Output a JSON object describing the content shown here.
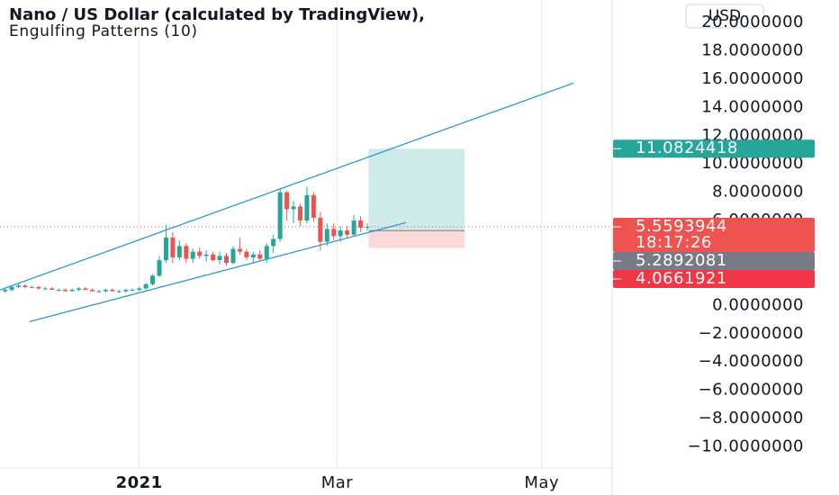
{
  "chart_data": {
    "type": "candlestick",
    "title": "Nano / US Dollar (calculated by TradingView),",
    "subtitle": "Engulfing Patterns (10)",
    "currency": "USD",
    "x": [
      -40,
      -38,
      -36,
      -34,
      -32,
      -30,
      -28,
      -26,
      -24,
      -22,
      -20,
      -18,
      -16,
      -14,
      -12,
      -10,
      -8,
      -6,
      -4,
      -2,
      0,
      2,
      4,
      6,
      8,
      10,
      12,
      14,
      16,
      18,
      20,
      22,
      24,
      26,
      28,
      30,
      32,
      34,
      36,
      38,
      40,
      42,
      44,
      46,
      48,
      50,
      52,
      54,
      56,
      58,
      60,
      62,
      64,
      66,
      68
    ],
    "open": [
      1.0,
      1.1,
      1.3,
      1.4,
      1.3,
      1.3,
      1.2,
      1.2,
      1.1,
      1.1,
      1.0,
      1.1,
      1.2,
      1.1,
      1.0,
      1.0,
      1.1,
      1.0,
      1.0,
      1.1,
      1.1,
      1.2,
      1.5,
      2.1,
      3.2,
      4.8,
      3.4,
      4.2,
      3.3,
      3.8,
      3.5,
      3.6,
      3.2,
      3.5,
      3.0,
      4.0,
      3.8,
      3.4,
      3.6,
      3.3,
      4.2,
      4.7,
      8.0,
      6.8,
      7.0,
      6.0,
      7.8,
      6.2,
      4.5,
      5.4,
      4.9,
      5.3,
      5.0,
      6.0,
      5.5
    ],
    "high": [
      1.2,
      1.4,
      1.6,
      1.5,
      1.4,
      1.4,
      1.3,
      1.3,
      1.2,
      1.2,
      1.2,
      1.3,
      1.3,
      1.2,
      1.1,
      1.2,
      1.2,
      1.1,
      1.2,
      1.2,
      1.3,
      1.6,
      2.2,
      3.5,
      5.7,
      5.2,
      4.6,
      4.4,
      4.0,
      4.1,
      3.9,
      3.8,
      3.8,
      3.7,
      4.2,
      4.8,
      4.0,
      3.8,
      3.9,
      4.4,
      5.0,
      8.3,
      8.1,
      7.4,
      7.2,
      8.4,
      8.0,
      6.6,
      5.8,
      5.8,
      5.6,
      5.6,
      6.4,
      6.3,
      5.8
    ],
    "low": [
      0.9,
      1.0,
      1.2,
      1.2,
      1.2,
      1.1,
      1.1,
      1.1,
      1.0,
      1.0,
      1.0,
      1.0,
      1.1,
      1.0,
      0.9,
      0.9,
      1.0,
      0.9,
      0.9,
      1.0,
      1.0,
      1.1,
      1.4,
      2.0,
      3.0,
      3.0,
      3.2,
      3.0,
      3.0,
      3.3,
      3.1,
      3.1,
      2.9,
      2.8,
      2.9,
      3.6,
      3.2,
      3.0,
      3.2,
      3.0,
      3.7,
      4.5,
      6.0,
      5.8,
      5.6,
      5.8,
      5.9,
      3.9,
      4.2,
      4.6,
      4.5,
      4.8,
      4.9,
      5.2,
      5.3
    ],
    "close": [
      1.1,
      1.3,
      1.4,
      1.3,
      1.3,
      1.2,
      1.2,
      1.1,
      1.1,
      1.0,
      1.1,
      1.2,
      1.1,
      1.0,
      1.0,
      1.1,
      1.0,
      1.0,
      1.1,
      1.1,
      1.2,
      1.5,
      2.1,
      3.2,
      4.8,
      3.4,
      4.2,
      3.3,
      3.8,
      3.5,
      3.6,
      3.2,
      3.5,
      3.0,
      4.0,
      3.8,
      3.4,
      3.6,
      3.3,
      4.2,
      4.7,
      8.0,
      6.8,
      7.0,
      6.0,
      7.8,
      6.2,
      4.5,
      5.4,
      4.9,
      5.3,
      5.0,
      6.0,
      5.5,
      5.5593944
    ],
    "up_color": "#26a69a",
    "down_color": "#ef5350",
    "xlim": [
      -41.5,
      141
    ],
    "xticks": [
      {
        "value": 0,
        "label": "2021"
      },
      {
        "value": 59,
        "label": "Mar"
      },
      {
        "value": 120,
        "label": "May"
      }
    ],
    "ylim": [
      -11.5,
      21.6
    ],
    "yticks": [
      {
        "value": 20,
        "label": "20.0000000"
      },
      {
        "value": 18,
        "label": "18.0000000"
      },
      {
        "value": 16,
        "label": "16.0000000"
      },
      {
        "value": 14,
        "label": "14.0000000"
      },
      {
        "value": 12,
        "label": "12.0000000"
      },
      {
        "value": 10,
        "label": "10.0000000"
      },
      {
        "value": 8,
        "label": "8.0000000"
      },
      {
        "value": 6,
        "label": "6.0000000"
      },
      {
        "value": 4,
        "label": "4.0000000"
      },
      {
        "value": 2,
        "label": "2.0000000"
      },
      {
        "value": 0,
        "label": "0.0000000"
      },
      {
        "value": -2,
        "label": "−2.0000000"
      },
      {
        "value": -4,
        "label": "−4.0000000"
      },
      {
        "value": -6,
        "label": "−6.0000000"
      },
      {
        "value": -8,
        "label": "−8.0000000"
      },
      {
        "value": -10,
        "label": "−10.0000000"
      }
    ],
    "grid": true,
    "trend_lines": [
      {
        "x": [
          -41.6,
          129.5
        ],
        "y": [
          1.08,
          15.73
        ]
      },
      {
        "x": [
          -32.7,
          79.6
        ],
        "y": [
          -1.15,
          5.86
        ]
      }
    ],
    "line_color": "#2a9ad6",
    "position": {
      "x": [
        68.4,
        97
      ],
      "entry": 5.2892081,
      "target": 11.0824418,
      "stop": 4.0661921
    },
    "last_price": 5.5593944,
    "countdown": "18:17:26"
  }
}
